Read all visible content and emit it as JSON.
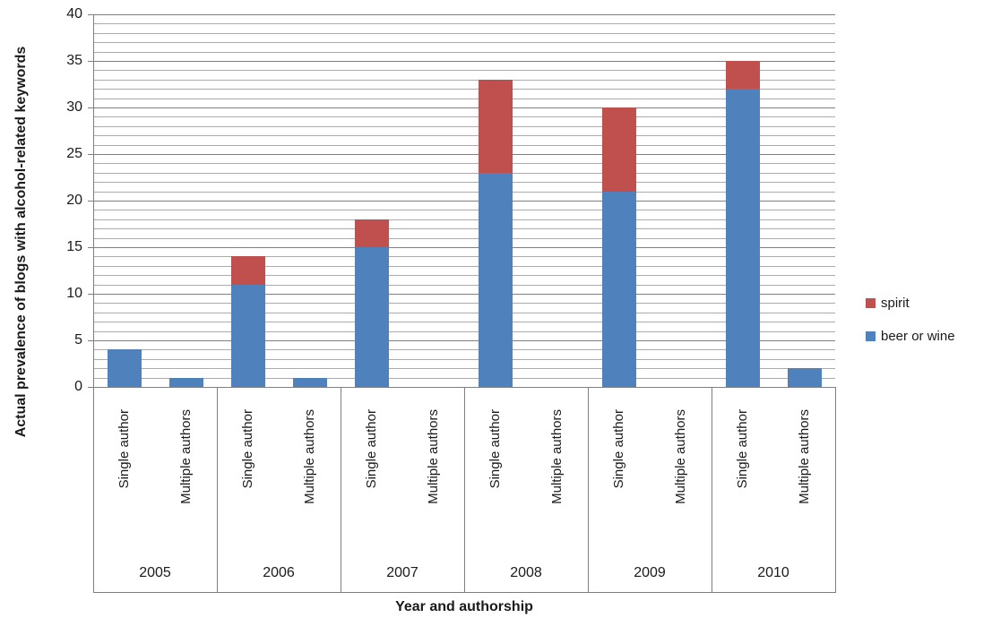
{
  "chart_data": {
    "type": "bar",
    "stacked": true,
    "xlabel": "Year and authorship",
    "ylabel": "Actual prevalence of blogs with alcohol-related keywords",
    "ylim": [
      0,
      40
    ],
    "ytick_step": 5,
    "minor_grid_step": 1,
    "grid": true,
    "legend_position": "right",
    "groups": [
      "2005",
      "2006",
      "2007",
      "2008",
      "2009",
      "2010"
    ],
    "subcategories": [
      "Single author",
      "Multiple authors"
    ],
    "series": [
      {
        "name": "beer or wine",
        "color": "#4F81BD",
        "values": [
          4,
          1,
          11,
          1,
          15,
          0,
          23,
          0,
          21,
          0,
          32,
          2
        ]
      },
      {
        "name": "spirit",
        "color": "#C0504D",
        "values": [
          0,
          0,
          3,
          0,
          3,
          0,
          10,
          0,
          9,
          0,
          3,
          0
        ]
      }
    ],
    "legend": [
      {
        "label": "spirit",
        "color": "#C0504D"
      },
      {
        "label": "beer or wine",
        "color": "#4F81BD"
      }
    ],
    "colors": {
      "major_grid": "#7F7F7F",
      "minor_grid": "#ABABAB",
      "axis": "#7F7F7F",
      "text": "#1a1a1a"
    }
  }
}
